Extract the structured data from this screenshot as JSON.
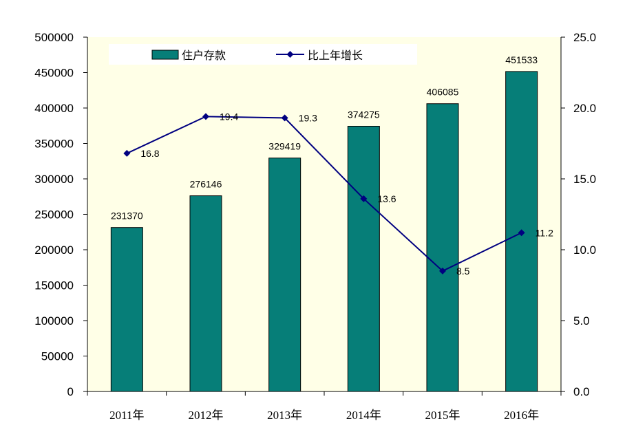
{
  "chart_data": {
    "type": "bar+line",
    "categories": [
      "2011年",
      "2012年",
      "2013年",
      "2014年",
      "2015年",
      "2016年"
    ],
    "series": [
      {
        "name": "住户存款",
        "type": "bar",
        "axis": "left",
        "values": [
          231370,
          276146,
          329419,
          374275,
          406085,
          451533
        ],
        "labels": [
          "231370",
          "276146",
          "329419",
          "374275",
          "406085",
          "451533"
        ]
      },
      {
        "name": "比上年增长",
        "type": "line",
        "axis": "right",
        "values": [
          16.8,
          19.4,
          19.3,
          13.6,
          8.5,
          11.2
        ],
        "labels": [
          "16.8",
          "19.4",
          "19.3",
          "13.6",
          "8.5",
          "11.2"
        ]
      }
    ],
    "left_axis": {
      "min": 0,
      "max": 500000,
      "step": 50000,
      "ticks": [
        "0",
        "50000",
        "100000",
        "150000",
        "200000",
        "250000",
        "300000",
        "350000",
        "400000",
        "450000",
        "500000"
      ]
    },
    "right_axis": {
      "min": 0,
      "max": 25,
      "step": 5,
      "ticks": [
        "0.0",
        "5.0",
        "10.0",
        "15.0",
        "20.0",
        "25.0"
      ]
    },
    "legend": {
      "position": "top-left",
      "items": [
        "住户存款",
        "比上年增长"
      ]
    },
    "grid": false,
    "colors": {
      "plot_bg": "#ffffe7",
      "bar": "#067e78",
      "bar_edge": "#000000",
      "line": "#000080",
      "legend_bg": "#ffffff"
    }
  }
}
